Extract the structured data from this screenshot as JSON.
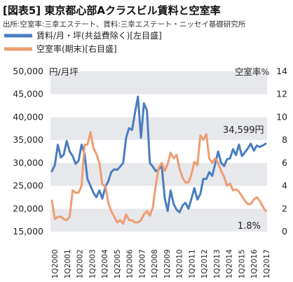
{
  "title": "[図表5] 東京都心部Aクラスビル賃料と空室率",
  "source": "出所:空室率:三幸エステート、賃料:三幸エステート・ニッセイ基礎研究所",
  "chart_data": {
    "type": "line",
    "x_labels": [
      "1Q2000",
      "1Q2001",
      "1Q2002",
      "1Q2003",
      "1Q2004",
      "1Q2005",
      "1Q2006",
      "1Q2007",
      "1Q2008",
      "1Q2009",
      "1Q2010",
      "1Q2011",
      "1Q2012",
      "1Q2013",
      "1Q2014",
      "1Q2015",
      "1Q2016",
      "1Q2017"
    ],
    "left_axis": {
      "unit_label": "円/月坪",
      "ticks": [
        "50,000",
        "45,000",
        "40,000",
        "35,000",
        "30,000",
        "25,000",
        "20,000",
        "15,000"
      ],
      "ylim": [
        15000,
        50000
      ]
    },
    "right_axis": {
      "unit_label": "空室率%",
      "ticks": [
        "14",
        "12",
        "10",
        "8",
        "6",
        "4",
        "2",
        "0"
      ],
      "ylim": [
        0,
        14
      ]
    },
    "series": [
      {
        "name": "賃料/月・坪(共益費除く)[左目盛]",
        "axis": "left",
        "color": "#4a7dc0",
        "values": [
          28200,
          29500,
          34000,
          31200,
          31800,
          34800,
          32500,
          31500,
          29800,
          30500,
          34000,
          32000,
          26500,
          25000,
          23500,
          22500,
          24000,
          22200,
          24800,
          26000,
          28000,
          28600,
          28500,
          29200,
          30000,
          35500,
          37600,
          37200,
          41000,
          44500,
          35500,
          43000,
          41500,
          30000,
          29200,
          28200,
          28600,
          29500,
          22300,
          19500,
          24000,
          21000,
          19800,
          19200,
          20700,
          21300,
          20000,
          22200,
          24500,
          22000,
          23200,
          26500,
          26500,
          28000,
          27200,
          29800,
          32500,
          30000,
          29300,
          30800,
          31000,
          33000,
          31700,
          34000,
          31500,
          32300,
          33200,
          34200,
          32700,
          33800,
          33500,
          33800,
          34200
        ]
      },
      {
        "name": "空室率(期末)[右目盛]",
        "axis": "right",
        "color": "#ee9d72",
        "values": [
          2.7,
          1.1,
          1.3,
          1.3,
          1.1,
          1.0,
          1.3,
          3.6,
          3.4,
          3.4,
          4.0,
          7.6,
          7.6,
          8.7,
          7.3,
          6.8,
          6.0,
          4.1,
          4.0,
          2.5,
          1.8,
          1.3,
          0.8,
          1.0,
          0.7,
          1.5,
          1.0,
          1.0,
          0.8,
          0.8,
          1.0,
          1.5,
          1.8,
          1.4,
          2.1,
          4.1,
          5.6,
          6.0,
          5.3,
          5.9,
          6.9,
          6.4,
          6.7,
          5.5,
          4.7,
          4.3,
          4.3,
          5.0,
          6.1,
          5.8,
          8.4,
          8.0,
          8.5,
          6.4,
          6.0,
          6.4,
          6.0,
          5.3,
          4.8,
          4.0,
          4.2,
          3.6,
          3.7,
          3.5,
          3.1,
          2.7,
          2.4,
          2.4,
          2.8,
          3.0,
          2.7,
          2.2,
          1.8
        ]
      }
    ],
    "annotations": [
      {
        "text": "34,599円",
        "series": 0
      },
      {
        "text": "1.8%",
        "series": 1
      }
    ],
    "shaded_bands": true
  }
}
